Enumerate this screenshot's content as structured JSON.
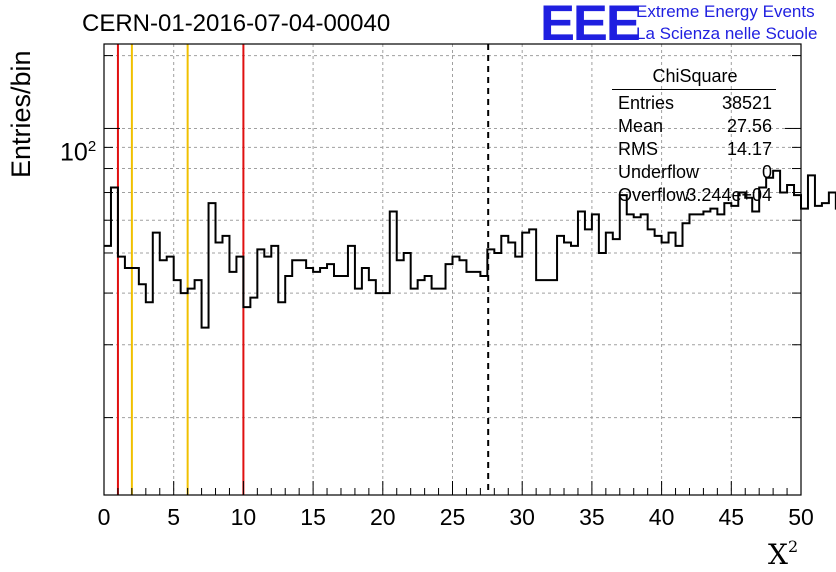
{
  "chart_data": {
    "type": "histogram",
    "title": "CERN-01-2016-07-04-00040",
    "xlabel_base": "X",
    "xlabel_sup": "2",
    "ylabel": "Entries/bin",
    "xlim": [
      0,
      50
    ],
    "ylim": [
      13,
      160
    ],
    "yscale": "log",
    "grid": true,
    "bin_width": 0.5,
    "xticks": [
      0,
      5,
      10,
      15,
      20,
      25,
      30,
      35,
      40,
      45,
      50
    ],
    "ytick_label_base": "10",
    "ytick_label_sup": "2",
    "values": [
      52,
      72,
      49,
      46,
      46,
      42,
      38,
      56,
      48,
      49,
      43,
      40,
      41,
      43,
      33,
      66,
      53,
      55,
      45,
      49,
      37,
      39,
      51,
      49,
      52,
      38,
      44,
      48,
      48,
      46,
      45,
      46,
      47,
      44,
      44,
      52,
      41,
      46,
      43,
      40,
      40,
      63,
      48,
      50,
      41,
      43,
      44,
      41,
      41,
      47,
      49,
      48,
      45,
      45,
      44,
      51,
      50,
      55,
      53,
      49,
      56,
      57,
      43,
      43,
      43,
      55,
      53,
      52,
      63,
      57,
      62,
      50,
      56,
      54,
      69,
      62,
      61,
      62,
      57,
      55,
      53,
      56,
      52,
      59,
      62,
      62,
      63,
      64,
      62,
      66,
      65,
      70,
      68,
      63,
      72,
      76,
      79,
      70,
      73,
      69,
      64,
      77,
      65,
      66,
      70,
      64,
      72,
      67,
      70,
      75,
      79,
      70,
      68,
      73,
      61,
      66,
      76,
      72,
      70,
      73,
      66,
      72,
      73,
      73,
      72,
      68,
      65,
      66,
      78,
      71,
      76,
      68,
      74,
      67,
      74,
      74,
      70,
      70,
      66,
      71,
      69,
      71,
      70,
      76,
      74,
      72,
      71,
      75,
      72,
      75,
      74,
      86,
      67,
      75,
      79,
      77,
      76,
      71,
      72,
      80,
      82,
      81,
      79,
      72,
      74,
      61,
      83,
      78,
      81,
      84,
      82,
      79,
      75,
      78,
      81,
      77,
      80,
      81,
      76,
      73,
      74,
      78,
      76,
      81,
      82,
      79,
      77,
      70,
      74,
      71,
      80,
      73,
      78,
      77,
      75,
      79,
      76,
      72,
      74,
      70
    ],
    "reference_lines": [
      {
        "x": 1,
        "color": "#e01010",
        "style": "solid"
      },
      {
        "x": 2,
        "color": "#f0c000",
        "style": "solid"
      },
      {
        "x": 6,
        "color": "#f0c000",
        "style": "solid"
      },
      {
        "x": 10,
        "color": "#e01010",
        "style": "solid"
      },
      {
        "x": 27.56,
        "color": "#000000",
        "style": "dashed"
      }
    ],
    "stats": {
      "title": "ChiSquare",
      "rows": [
        {
          "key": "Entries",
          "value": "38521"
        },
        {
          "key": "Mean",
          "value": "27.56"
        },
        {
          "key": "RMS",
          "value": "14.17"
        },
        {
          "key": "Underflow",
          "value": "0"
        },
        {
          "key": "Overflow",
          "value": "3.244e+04"
        }
      ]
    }
  },
  "logo": {
    "mark": "EEE",
    "line1": "Extreme Energy Events",
    "line2": "La Scienza nelle Scuole",
    "color": "#1f1fe0"
  }
}
